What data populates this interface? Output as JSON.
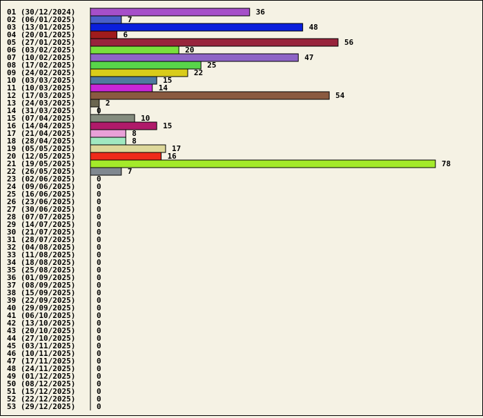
{
  "chart_data": {
    "type": "bar",
    "orientation": "horizontal",
    "title": "",
    "xlabel": "",
    "ylabel": "",
    "grid": false,
    "xlim": [
      0,
      78
    ],
    "categories": [
      "01 (30/12/2024)",
      "02 (06/01/2025)",
      "03 (13/01/2025)",
      "04 (20/01/2025)",
      "05 (27/01/2025)",
      "06 (03/02/2025)",
      "07 (10/02/2025)",
      "08 (17/02/2025)",
      "09 (24/02/2025)",
      "10 (03/03/2025)",
      "11 (10/03/2025)",
      "12 (17/03/2025)",
      "13 (24/03/2025)",
      "14 (31/03/2025)",
      "15 (07/04/2025)",
      "16 (14/04/2025)",
      "17 (21/04/2025)",
      "18 (28/04/2025)",
      "19 (05/05/2025)",
      "20 (12/05/2025)",
      "21 (19/05/2025)",
      "22 (26/05/2025)",
      "23 (02/06/2025)",
      "24 (09/06/2025)",
      "25 (16/06/2025)",
      "26 (23/06/2025)",
      "27 (30/06/2025)",
      "28 (07/07/2025)",
      "29 (14/07/2025)",
      "30 (21/07/2025)",
      "31 (28/07/2025)",
      "32 (04/08/2025)",
      "33 (11/08/2025)",
      "34 (18/08/2025)",
      "35 (25/08/2025)",
      "36 (01/09/2025)",
      "37 (08/09/2025)",
      "38 (15/09/2025)",
      "39 (22/09/2025)",
      "40 (29/09/2025)",
      "41 (06/10/2025)",
      "42 (13/10/2025)",
      "43 (20/10/2025)",
      "44 (27/10/2025)",
      "45 (03/11/2025)",
      "46 (10/11/2025)",
      "47 (17/11/2025)",
      "48 (24/11/2025)",
      "49 (01/12/2025)",
      "50 (08/12/2025)",
      "51 (15/12/2025)",
      "52 (22/12/2025)",
      "53 (29/12/2025)"
    ],
    "values": [
      36,
      7,
      48,
      6,
      56,
      20,
      47,
      25,
      22,
      15,
      14,
      54,
      2,
      0,
      10,
      15,
      8,
      8,
      17,
      16,
      78,
      7,
      0,
      0,
      0,
      0,
      0,
      0,
      0,
      0,
      0,
      0,
      0,
      0,
      0,
      0,
      0,
      0,
      0,
      0,
      0,
      0,
      0,
      0,
      0,
      0,
      0,
      0,
      0,
      0,
      0,
      0,
      0
    ],
    "colors": [
      "#a64fc9",
      "#4a5fc9",
      "#0a1fdc",
      "#a01c1c",
      "#98243c",
      "#79e03c",
      "#8e65c6",
      "#58d54a",
      "#d9cc1a",
      "#4f7aa0",
      "#c926d8",
      "#8a5a40",
      "#6b6650",
      "#f5f2e4",
      "#848c7e",
      "#b01a6a",
      "#e8a0d8",
      "#a0e8c0",
      "#ddd89a",
      "#ee2a1a",
      "#a4ea2a",
      "#808890"
    ]
  }
}
